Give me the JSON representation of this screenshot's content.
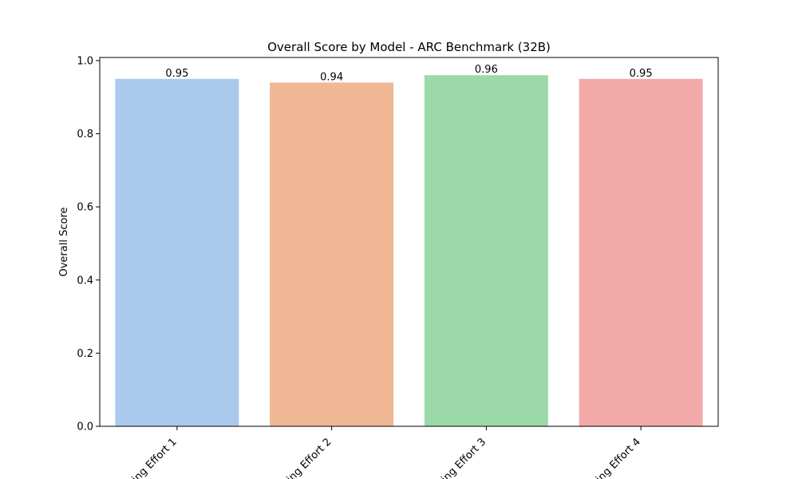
{
  "chart_data": {
    "type": "bar",
    "title": "Overall Score by Model - ARC Benchmark (32B)",
    "xlabel": "",
    "ylabel": "Overall Score",
    "categories": [
      "ing Effort 1",
      "ing Effort 2",
      "ing Effort 3",
      "ing Effort 4"
    ],
    "values": [
      0.95,
      0.94,
      0.96,
      0.95
    ],
    "value_labels": [
      "0.95",
      "0.94",
      "0.96",
      "0.95"
    ],
    "colors": [
      "#abc9ec",
      "#f0b894",
      "#9bd9a8",
      "#f1aaa8"
    ],
    "ylim": [
      0,
      1.0
    ],
    "yticks": [
      0.0,
      0.2,
      0.4,
      0.6,
      0.8,
      1.0
    ],
    "ytick_labels": [
      "0.0",
      "0.2",
      "0.4",
      "0.6",
      "0.8",
      "1.0"
    ],
    "grid": false,
    "legend": "none"
  }
}
